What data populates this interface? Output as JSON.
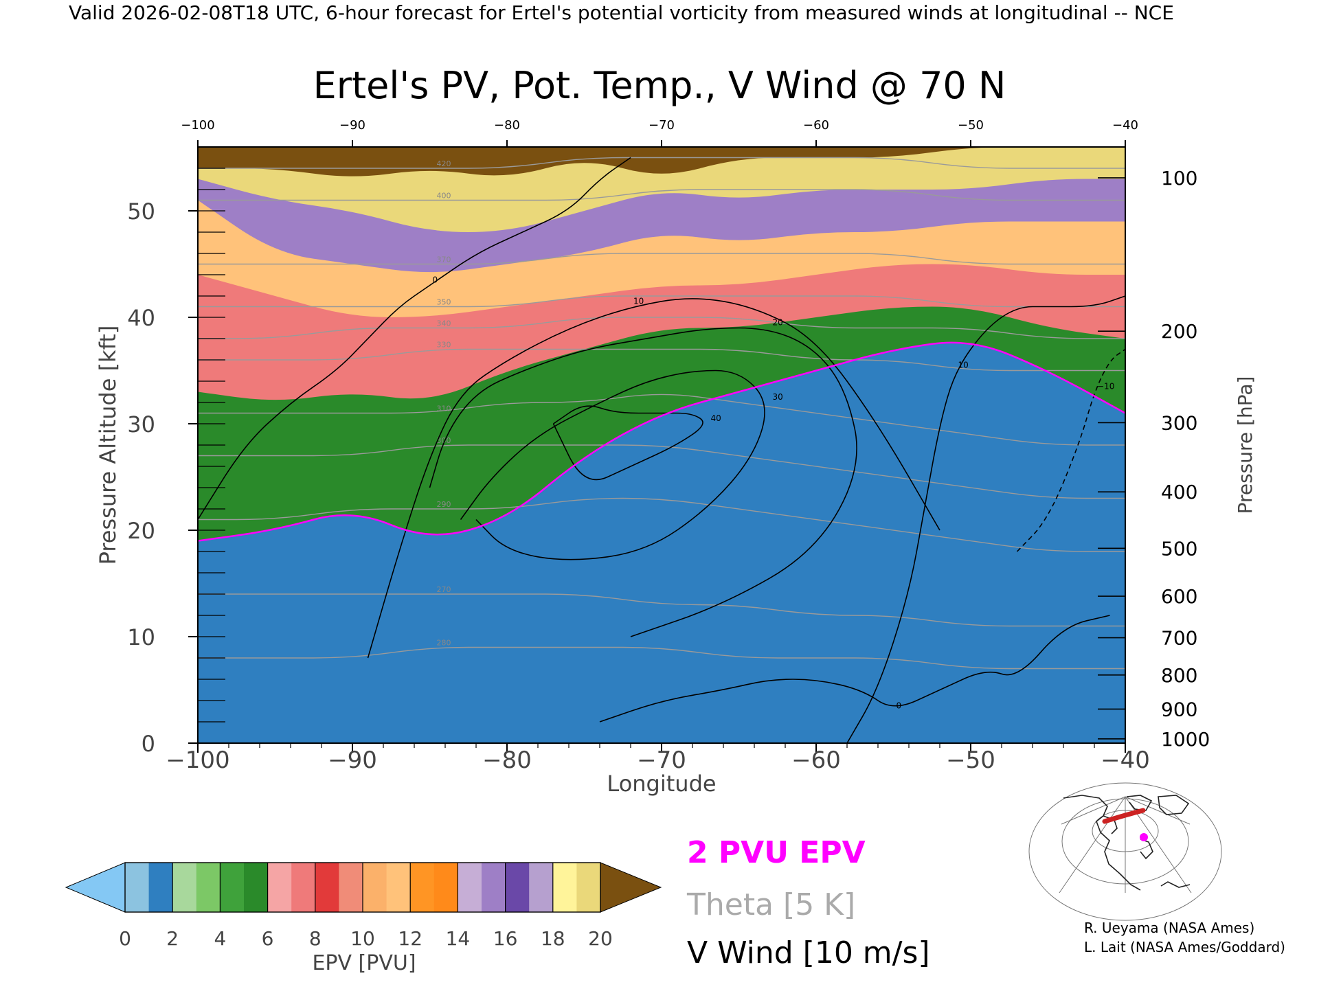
{
  "header": {
    "validity": "Valid 2026-02-08T18 UTC, 6-hour forecast for Ertel's potential vorticity from measured winds at longitudinal -- NCE"
  },
  "chart_data": {
    "type": "heatmap",
    "title": "Ertel's PV, Pot. Temp., V Wind @ 70 N",
    "xlabel": "Longitude",
    "ylabel": "Pressure Altitude [kft]",
    "y2label": "Pressure [hPa]",
    "xlim": [
      -100,
      -40
    ],
    "ylim": [
      0,
      56
    ],
    "x_ticks": [
      -100,
      -90,
      -80,
      -70,
      -60,
      -50,
      -40
    ],
    "x_tick_labels": [
      "−100",
      "−90",
      "−80",
      "−70",
      "−60",
      "−50",
      "−40"
    ],
    "top_tick_labels": [
      "−100",
      "−90",
      "−80",
      "−70",
      "−60",
      "−50",
      "−40"
    ],
    "y_ticks": [
      0,
      10,
      20,
      30,
      40,
      50
    ],
    "pressure_ticks": [
      {
        "label": "100",
        "kft": 53.1
      },
      {
        "label": "200",
        "kft": 38.7
      },
      {
        "label": "300",
        "kft": 30.1
      },
      {
        "label": "400",
        "kft": 23.6
      },
      {
        "label": "500",
        "kft": 18.3
      },
      {
        "label": "600",
        "kft": 13.8
      },
      {
        "label": "700",
        "kft": 9.9
      },
      {
        "label": "800",
        "kft": 6.4
      },
      {
        "label": "900",
        "kft": 3.2
      },
      {
        "label": "1000",
        "kft": 0.4
      }
    ],
    "epv_bands": [
      {
        "lo": 0,
        "hi": 1,
        "color": "#8cc3e0"
      },
      {
        "lo": 1,
        "hi": 2,
        "color": "#2f7fc0"
      },
      {
        "lo": 2,
        "hi": 3,
        "color": "#a8d89c"
      },
      {
        "lo": 3,
        "hi": 4,
        "color": "#7cc866"
      },
      {
        "lo": 4,
        "hi": 5,
        "color": "#3fa23b"
      },
      {
        "lo": 5,
        "hi": 6,
        "color": "#2a8a2a"
      },
      {
        "lo": 6,
        "hi": 7,
        "color": "#f5a5a5"
      },
      {
        "lo": 7,
        "hi": 8,
        "color": "#ef7a7a"
      },
      {
        "lo": 8,
        "hi": 9,
        "color": "#e23a3a"
      },
      {
        "lo": 9,
        "hi": 10,
        "color": "#f08c78"
      },
      {
        "lo": 10,
        "hi": 11,
        "color": "#fbb16a"
      },
      {
        "lo": 11,
        "hi": 12,
        "color": "#ffc27a"
      },
      {
        "lo": 12,
        "hi": 13,
        "color": "#ff9524"
      },
      {
        "lo": 13,
        "hi": 14,
        "color": "#ff8a1a"
      },
      {
        "lo": 14,
        "hi": 15,
        "color": "#c6aed6"
      },
      {
        "lo": 15,
        "hi": 16,
        "color": "#9e7fc6"
      },
      {
        "lo": 16,
        "hi": 17,
        "color": "#6a48a8"
      },
      {
        "lo": 17,
        "hi": 18,
        "color": "#b6a0cf"
      },
      {
        "lo": 18,
        "hi": 19,
        "color": "#fff49a"
      },
      {
        "lo": 19,
        "hi": 20,
        "color": "#ead87a"
      }
    ],
    "above_color": "#7a5010",
    "below_color": "#84c8f4",
    "colorbar": {
      "label": "EPV [PVU]",
      "tick_labels": [
        "0",
        "2",
        "4",
        "6",
        "8",
        "10",
        "12",
        "14",
        "16",
        "18",
        "20"
      ]
    },
    "pv2_boundary_color": "#ff00ff",
    "epv_levels": [
      {
        "epv": 20,
        "kft": [
          54,
          54,
          53,
          54,
          53,
          55,
          53,
          55,
          55,
          55,
          56,
          56,
          56
        ]
      },
      {
        "epv": 16,
        "kft": [
          53,
          51,
          50,
          48,
          48,
          50,
          52,
          51,
          52,
          52,
          52,
          53,
          53
        ]
      },
      {
        "epv": 12,
        "kft": [
          51,
          46,
          45,
          44,
          45,
          46,
          48,
          47,
          48,
          48,
          49,
          49,
          49
        ]
      },
      {
        "epv": 8,
        "kft": [
          44,
          42,
          40,
          40,
          41,
          42,
          43,
          43,
          44,
          45,
          45,
          44,
          44
        ]
      },
      {
        "epv": 6,
        "kft": [
          33,
          32,
          33,
          32,
          35,
          37,
          39,
          39,
          40,
          41,
          41,
          39,
          38
        ]
      },
      {
        "epv": 2,
        "kft": [
          19,
          20,
          22,
          19,
          21,
          27,
          31,
          33,
          35,
          37,
          38,
          35,
          31
        ]
      }
    ],
    "epv_level_x": [
      -100,
      -95,
      -90,
      -85,
      -80,
      -75,
      -70,
      -65,
      -60,
      -55,
      -50,
      -45,
      -40
    ],
    "theta_contours": [
      {
        "label": "270",
        "kft": [
          14,
          14,
          14,
          14,
          14,
          14,
          13,
          13,
          12,
          12,
          11,
          11,
          11
        ]
      },
      {
        "label": "280",
        "kft": [
          8,
          8,
          8,
          9,
          9,
          9,
          9,
          8,
          8,
          8,
          7,
          7,
          7
        ]
      },
      {
        "label": "290",
        "kft": [
          21,
          21,
          22,
          22,
          22,
          23,
          23,
          22,
          21,
          20,
          19,
          18,
          18
        ]
      },
      {
        "label": "300",
        "kft": [
          27,
          27,
          27,
          28,
          28,
          28,
          28,
          27,
          26,
          25,
          24,
          23,
          23
        ]
      },
      {
        "label": "310",
        "kft": [
          31,
          31,
          31,
          31,
          32,
          32,
          33,
          32,
          31,
          30,
          29,
          28,
          28
        ]
      },
      {
        "label": "330",
        "kft": [
          36,
          36,
          36,
          37,
          37,
          37,
          37,
          37,
          36,
          36,
          35,
          35,
          35
        ]
      },
      {
        "label": "340",
        "kft": [
          38,
          38,
          39,
          39,
          39,
          40,
          40,
          40,
          39,
          39,
          39,
          38,
          38
        ]
      },
      {
        "label": "350",
        "kft": [
          41,
          41,
          41,
          41,
          41,
          42,
          42,
          42,
          42,
          42,
          41,
          41,
          41
        ]
      },
      {
        "label": "370",
        "kft": [
          45,
          45,
          45,
          45,
          45,
          46,
          46,
          46,
          46,
          46,
          45,
          45,
          45
        ]
      },
      {
        "label": "400",
        "kft": [
          51,
          51,
          51,
          51,
          51,
          51,
          52,
          52,
          52,
          52,
          51,
          51,
          51
        ]
      },
      {
        "label": "420",
        "kft": [
          54,
          54,
          54,
          54,
          54,
          55,
          55,
          55,
          55,
          55,
          54,
          54,
          54
        ]
      }
    ],
    "theta_x": [
      -100,
      -95,
      -90,
      -85,
      -80,
      -75,
      -70,
      -65,
      -60,
      -55,
      -50,
      -45,
      -40
    ],
    "wind_contours": [
      {
        "label": "0",
        "x": [
          -100,
          -97,
          -94,
          -91,
          -89,
          -87,
          -85,
          -82,
          -79,
          -76,
          -74,
          -72
        ],
        "y": [
          21,
          28,
          32,
          35,
          38,
          41,
          43,
          46,
          48,
          50,
          53,
          55
        ]
      },
      {
        "label": "10",
        "x": [
          -89,
          -87,
          -85,
          -83,
          -80,
          -76,
          -72,
          -68,
          -64,
          -60,
          -56,
          -52
        ],
        "y": [
          8,
          18,
          27,
          33,
          36,
          39,
          41,
          42,
          41,
          38,
          30,
          20
        ]
      },
      {
        "label": "20",
        "x": [
          -85,
          -84,
          -82,
          -79,
          -75,
          -71,
          -67,
          -63,
          -60,
          -58,
          -57,
          -60,
          -66,
          -72
        ],
        "y": [
          24,
          29,
          33,
          35,
          37,
          38,
          39,
          39,
          37,
          33,
          26,
          18,
          13,
          10
        ]
      },
      {
        "label": "30",
        "x": [
          -83,
          -81,
          -78,
          -74,
          -71,
          -68,
          -65,
          -63,
          -64,
          -67,
          -71,
          -76,
          -80,
          -82
        ],
        "y": [
          21,
          25,
          29,
          32,
          34,
          35,
          35,
          32,
          27,
          22,
          18,
          17,
          18,
          21
        ]
      },
      {
        "label": "40",
        "x": [
          -77,
          -75,
          -73,
          -70,
          -68,
          -67,
          -69,
          -72,
          -75,
          -77
        ],
        "y": [
          30,
          32,
          31,
          31,
          31,
          30,
          28,
          26,
          24,
          30
        ]
      },
      {
        "label": "10",
        "x": [
          -58,
          -56,
          -54,
          -53,
          -52,
          -51,
          -49,
          -47,
          -45,
          -42,
          -40
        ],
        "y": [
          0,
          5,
          14,
          22,
          30,
          35,
          39,
          41,
          41,
          41,
          42
        ]
      },
      {
        "label": "0",
        "x": [
          -74,
          -70,
          -66,
          -63,
          -60,
          -57,
          -55,
          -52,
          -49,
          -47,
          -44,
          -41
        ],
        "y": [
          2,
          4,
          5,
          6,
          6,
          5,
          3,
          5,
          7,
          6,
          11,
          12
        ]
      },
      {
        "label": "−10",
        "x": [
          -47,
          -45,
          -43,
          -42,
          -41,
          -40
        ],
        "y": [
          18,
          21,
          28,
          33,
          36,
          37
        ]
      }
    ],
    "legend": {
      "pv2": "2 PVU EPV",
      "theta": "Theta [5 K]",
      "vwind": "V Wind [10 m/s]"
    }
  },
  "credits": {
    "line1": "R. Ueyama (NASA Ames)",
    "line2": "L. Lait (NASA Ames/Goddard)"
  }
}
